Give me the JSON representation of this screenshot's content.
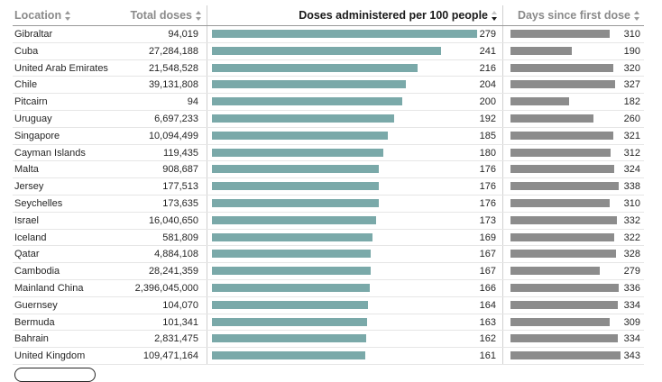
{
  "table": {
    "headers": {
      "location": "Location",
      "total_doses": "Total doses",
      "doses_per_100": "Doses administered per 100 people",
      "days_since": "Days since first dose"
    },
    "sorted_by": "doses_per_100",
    "colors": {
      "doses_bar": "#7aa9a9",
      "days_bar": "#8c8c8c"
    },
    "doses_bar_max": 279,
    "days_bar_max": 343,
    "rows": [
      {
        "location": "Gibraltar",
        "total": "94,019",
        "per100": 279,
        "days": 310
      },
      {
        "location": "Cuba",
        "total": "27,284,188",
        "per100": 241,
        "days": 190
      },
      {
        "location": "United Arab Emirates",
        "total": "21,548,528",
        "per100": 216,
        "days": 320
      },
      {
        "location": "Chile",
        "total": "39,131,808",
        "per100": 204,
        "days": 327
      },
      {
        "location": "Pitcairn",
        "total": "94",
        "per100": 200,
        "days": 182
      },
      {
        "location": "Uruguay",
        "total": "6,697,233",
        "per100": 192,
        "days": 260
      },
      {
        "location": "Singapore",
        "total": "10,094,499",
        "per100": 185,
        "days": 321
      },
      {
        "location": "Cayman Islands",
        "total": "119,435",
        "per100": 180,
        "days": 312
      },
      {
        "location": "Malta",
        "total": "908,687",
        "per100": 176,
        "days": 324
      },
      {
        "location": "Jersey",
        "total": "177,513",
        "per100": 176,
        "days": 338
      },
      {
        "location": "Seychelles",
        "total": "173,635",
        "per100": 176,
        "days": 310
      },
      {
        "location": "Israel",
        "total": "16,040,650",
        "per100": 173,
        "days": 332
      },
      {
        "location": "Iceland",
        "total": "581,809",
        "per100": 169,
        "days": 322
      },
      {
        "location": "Qatar",
        "total": "4,884,108",
        "per100": 167,
        "days": 328
      },
      {
        "location": "Cambodia",
        "total": "28,241,359",
        "per100": 167,
        "days": 279
      },
      {
        "location": "Mainland China",
        "total": "2,396,045,000",
        "per100": 166,
        "days": 336
      },
      {
        "location": "Guernsey",
        "total": "104,070",
        "per100": 164,
        "days": 334
      },
      {
        "location": "Bermuda",
        "total": "101,341",
        "per100": 163,
        "days": 309
      },
      {
        "location": "Bahrain",
        "total": "2,831,475",
        "per100": 162,
        "days": 334
      },
      {
        "location": "United Kingdom",
        "total": "109,471,164",
        "per100": 161,
        "days": 343
      }
    ]
  }
}
